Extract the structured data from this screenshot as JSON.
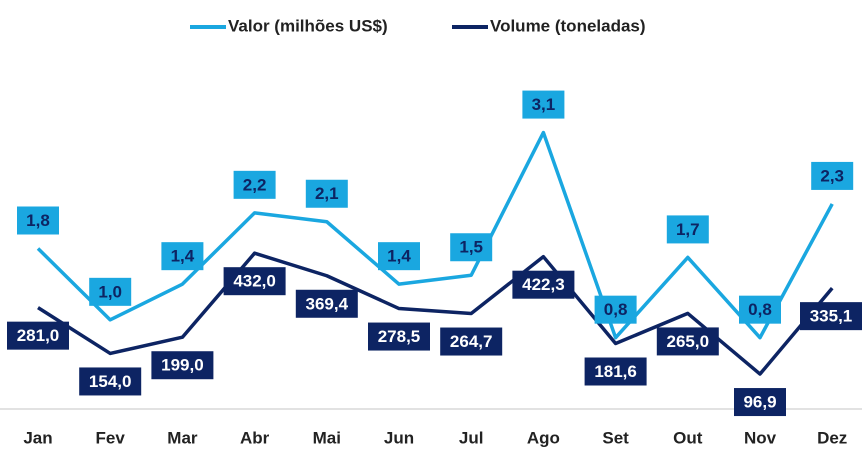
{
  "chart_data": {
    "type": "line",
    "categories": [
      "Jan",
      "Fev",
      "Mar",
      "Abr",
      "Mai",
      "Jun",
      "Jul",
      "Ago",
      "Set",
      "Out",
      "Nov",
      "Dez"
    ],
    "series": [
      {
        "name": "Valor (milhões US$)",
        "color": "#1aa7e0",
        "values": [
          1.8,
          1.0,
          1.4,
          2.2,
          2.1,
          1.4,
          1.5,
          3.1,
          0.8,
          1.7,
          0.8,
          2.3
        ],
        "value_labels": [
          "1,8",
          "1,0",
          "1,4",
          "2,2",
          "2,1",
          "1,4",
          "1,5",
          "3,1",
          "0,8",
          "1,7",
          "0,8",
          "2,3"
        ]
      },
      {
        "name": "Volume (toneladas)",
        "color": "#0d2463",
        "axis": "y2",
        "values": [
          281.0,
          154.0,
          199.0,
          432.0,
          369.4,
          278.5,
          264.7,
          422.3,
          181.6,
          265.0,
          96.9,
          335.1
        ],
        "value_labels": [
          "281,0",
          "154,0",
          "199,0",
          "432,0",
          "369,4",
          "278,5",
          "264,7",
          "422,3",
          "181,6",
          "265,0",
          "96,9",
          "335,1"
        ]
      }
    ],
    "ylim": [
      0,
      3.6
    ],
    "y2lim": [
      0,
      890
    ],
    "legend": "top"
  }
}
